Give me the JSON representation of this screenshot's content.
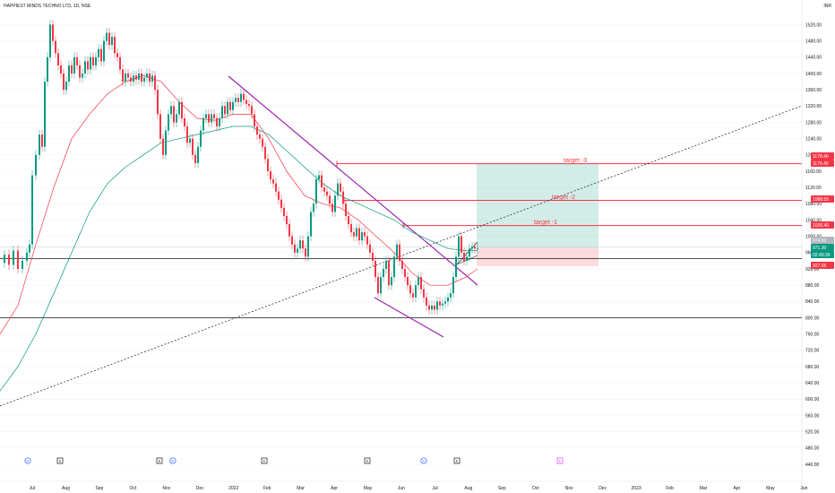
{
  "header": {
    "title": "HAPPIEST MINDS TECHNO LTD, 1D, NSE",
    "currency": "INR"
  },
  "chart_data": {
    "type": "candlestick",
    "title": "HAPPIEST MINDS TECHNO LTD, 1D, NSE",
    "y_axis": {
      "min": 430,
      "max": 1600,
      "ticks": [
        1520,
        1480,
        1440,
        1400,
        1360,
        1320,
        1280,
        1240,
        1200,
        1160,
        1120,
        1080,
        1040,
        1000,
        960,
        920,
        880,
        840,
        800,
        760,
        720,
        680,
        640,
        600,
        560,
        520,
        480,
        440
      ],
      "labels": [
        "1520.00",
        "1480.00",
        "1440.00",
        "1400.00",
        "1360.00",
        "1320.00",
        "1280.00",
        "1240.00",
        "1200.00",
        "1160.00",
        "1120.00",
        "1080.00",
        "1040.00",
        "1000.00",
        "960.00",
        "920.00",
        "880.00",
        "840.00",
        "800.00",
        "760.00",
        "720.00",
        "680.00",
        "640.00",
        "600.00",
        "560.00",
        "520.00",
        "480.00",
        "440.00"
      ]
    },
    "x_axis": {
      "labels": [
        "Jul",
        "Aug",
        "Sep",
        "Oct",
        "Nov",
        "Dec",
        "2022",
        "Feb",
        "Mar",
        "Apr",
        "May",
        "Jun",
        "Jul",
        "Aug",
        "Sep",
        "Oct",
        "Nov",
        "Dec",
        "2023",
        "Feb",
        "Mar",
        "Apr",
        "May",
        "Jun",
        "Ju"
      ]
    },
    "price_tags": [
      {
        "label": "1178.40",
        "value": 1178.4,
        "color": "#f23645"
      },
      {
        "label": "1176.40",
        "value": 1176.4,
        "color": "#f23645"
      },
      {
        "label": "1088.55",
        "value": 1088.55,
        "color": "#f23645"
      },
      {
        "label": "1026.40",
        "value": 1026.4,
        "color": "#f23645"
      },
      {
        "label": "974.50",
        "value": 974.5,
        "color": "#b2b5be"
      },
      {
        "label": "971.30",
        "value": 971.3,
        "color": "#089981"
      },
      {
        "label": "02:49:39",
        "value": 953,
        "color": "#089981"
      },
      {
        "label": "927.05",
        "value": 927.05,
        "color": "#f23645"
      }
    ],
    "levels": {
      "target3": 1178.4,
      "target2": 1088.55,
      "target1": 1026.4,
      "entry": 971.3,
      "stop": 927.05,
      "support_top": 945,
      "support_bottom": 800
    },
    "target_labels": [
      "target -3",
      "target -2",
      "target -1"
    ],
    "events": [
      "D",
      "E",
      "E",
      "D",
      "E",
      "E",
      "D",
      "E",
      "E"
    ],
    "close_series": [
      [
        0,
        935
      ],
      [
        5,
        955
      ],
      [
        10,
        930
      ],
      [
        15,
        965
      ],
      [
        20,
        920
      ],
      [
        25,
        940
      ],
      [
        30,
        960
      ],
      [
        33,
        980
      ],
      [
        36,
        1150
      ],
      [
        40,
        1200
      ],
      [
        44,
        1250
      ],
      [
        47,
        1220
      ],
      [
        50,
        1380
      ],
      [
        53,
        1440
      ],
      [
        56,
        1520
      ],
      [
        59,
        1480
      ],
      [
        62,
        1450
      ],
      [
        65,
        1420
      ],
      [
        68,
        1400
      ],
      [
        71,
        1360
      ],
      [
        74,
        1380
      ],
      [
        77,
        1420
      ],
      [
        80,
        1400
      ],
      [
        83,
        1440
      ],
      [
        86,
        1420
      ],
      [
        89,
        1390
      ],
      [
        92,
        1400
      ],
      [
        95,
        1430
      ],
      [
        98,
        1410
      ],
      [
        101,
        1440
      ],
      [
        104,
        1420
      ],
      [
        107,
        1440
      ],
      [
        110,
        1460
      ],
      [
        113,
        1430
      ],
      [
        116,
        1480
      ],
      [
        119,
        1500
      ],
      [
        122,
        1470
      ],
      [
        125,
        1490
      ],
      [
        128,
        1450
      ],
      [
        131,
        1440
      ],
      [
        134,
        1410
      ],
      [
        137,
        1380
      ],
      [
        140,
        1400
      ],
      [
        143,
        1390
      ],
      [
        146,
        1380
      ],
      [
        149,
        1395
      ],
      [
        152,
        1385
      ],
      [
        155,
        1400
      ],
      [
        158,
        1380
      ],
      [
        161,
        1390
      ],
      [
        164,
        1400
      ],
      [
        167,
        1380
      ],
      [
        170,
        1395
      ],
      [
        173,
        1360
      ],
      [
        176,
        1300
      ],
      [
        179,
        1240
      ],
      [
        182,
        1200
      ],
      [
        185,
        1260
      ],
      [
        188,
        1300
      ],
      [
        191,
        1320
      ],
      [
        194,
        1280
      ],
      [
        197,
        1300
      ],
      [
        200,
        1330
      ],
      [
        203,
        1290
      ],
      [
        206,
        1270
      ],
      [
        209,
        1230
      ],
      [
        212,
        1240
      ],
      [
        215,
        1200
      ],
      [
        218,
        1180
      ],
      [
        221,
        1220
      ],
      [
        224,
        1260
      ],
      [
        227,
        1290
      ],
      [
        230,
        1300
      ],
      [
        233,
        1280
      ],
      [
        236,
        1300
      ],
      [
        239,
        1290
      ],
      [
        242,
        1270
      ],
      [
        245,
        1290
      ],
      [
        248,
        1320
      ],
      [
        251,
        1300
      ],
      [
        254,
        1330
      ],
      [
        257,
        1310
      ],
      [
        260,
        1330
      ],
      [
        263,
        1340
      ],
      [
        266,
        1330
      ],
      [
        269,
        1350
      ],
      [
        272,
        1335
      ],
      [
        275,
        1325
      ],
      [
        278,
        1320
      ],
      [
        281,
        1300
      ],
      [
        284,
        1270
      ],
      [
        287,
        1250
      ],
      [
        290,
        1240
      ],
      [
        293,
        1220
      ],
      [
        296,
        1190
      ],
      [
        299,
        1160
      ],
      [
        302,
        1140
      ],
      [
        305,
        1130
      ],
      [
        308,
        1110
      ],
      [
        311,
        1090
      ],
      [
        314,
        1070
      ],
      [
        317,
        1050
      ],
      [
        320,
        1030
      ],
      [
        323,
        1000
      ],
      [
        326,
        980
      ],
      [
        329,
        960
      ],
      [
        332,
        970
      ],
      [
        335,
        990
      ],
      [
        338,
        970
      ],
      [
        341,
        950
      ],
      [
        344,
        1000
      ],
      [
        347,
        1060
      ],
      [
        350,
        1080
      ],
      [
        353,
        1140
      ],
      [
        356,
        1150
      ],
      [
        359,
        1120
      ],
      [
        362,
        1110
      ],
      [
        365,
        1100
      ],
      [
        368,
        1080
      ],
      [
        371,
        1060
      ],
      [
        374,
        1100
      ],
      [
        377,
        1130
      ],
      [
        380,
        1110
      ],
      [
        383,
        1080
      ],
      [
        386,
        1050
      ],
      [
        389,
        1030
      ],
      [
        392,
        1010
      ],
      [
        395,
        1000
      ],
      [
        398,
        1020
      ],
      [
        401,
        990
      ],
      [
        404,
        1010
      ],
      [
        407,
        1000
      ],
      [
        410,
        980
      ],
      [
        413,
        960
      ],
      [
        416,
        940
      ],
      [
        419,
        900
      ],
      [
        422,
        860
      ],
      [
        425,
        900
      ],
      [
        428,
        920
      ],
      [
        431,
        940
      ],
      [
        434,
        880
      ],
      [
        437,
        900
      ],
      [
        440,
        950
      ],
      [
        443,
        980
      ],
      [
        446,
        940
      ],
      [
        449,
        920
      ],
      [
        452,
        900
      ],
      [
        455,
        880
      ],
      [
        458,
        860
      ],
      [
        461,
        850
      ],
      [
        464,
        880
      ],
      [
        467,
        900
      ],
      [
        470,
        870
      ],
      [
        473,
        850
      ],
      [
        476,
        830
      ],
      [
        479,
        820
      ],
      [
        482,
        830
      ],
      [
        485,
        820
      ],
      [
        488,
        840
      ],
      [
        491,
        830
      ],
      [
        494,
        835
      ],
      [
        497,
        840
      ],
      [
        500,
        850
      ],
      [
        503,
        860
      ],
      [
        506,
        900
      ],
      [
        509,
        950
      ],
      [
        512,
        1000
      ],
      [
        515,
        960
      ],
      [
        518,
        940
      ],
      [
        521,
        950
      ],
      [
        524,
        970
      ],
      [
        527,
        975
      ],
      [
        530,
        970
      ],
      [
        533,
        971
      ]
    ],
    "ema_red": [
      [
        0,
        760
      ],
      [
        20,
        830
      ],
      [
        40,
        980
      ],
      [
        60,
        1120
      ],
      [
        80,
        1240
      ],
      [
        100,
        1300
      ],
      [
        120,
        1350
      ],
      [
        140,
        1380
      ],
      [
        160,
        1395
      ],
      [
        180,
        1380
      ],
      [
        200,
        1330
      ],
      [
        220,
        1290
      ],
      [
        240,
        1285
      ],
      [
        260,
        1300
      ],
      [
        280,
        1300
      ],
      [
        300,
        1240
      ],
      [
        320,
        1160
      ],
      [
        340,
        1100
      ],
      [
        360,
        1080
      ],
      [
        380,
        1070
      ],
      [
        400,
        1040
      ],
      [
        420,
        1000
      ],
      [
        440,
        960
      ],
      [
        460,
        910
      ],
      [
        480,
        880
      ],
      [
        500,
        880
      ],
      [
        520,
        900
      ],
      [
        533,
        920
      ]
    ],
    "ema_green": [
      [
        0,
        620
      ],
      [
        20,
        680
      ],
      [
        40,
        760
      ],
      [
        60,
        860
      ],
      [
        80,
        960
      ],
      [
        100,
        1060
      ],
      [
        120,
        1130
      ],
      [
        140,
        1170
      ],
      [
        160,
        1200
      ],
      [
        180,
        1230
      ],
      [
        200,
        1240
      ],
      [
        220,
        1250
      ],
      [
        240,
        1260
      ],
      [
        260,
        1270
      ],
      [
        280,
        1270
      ],
      [
        300,
        1250
      ],
      [
        320,
        1210
      ],
      [
        340,
        1170
      ],
      [
        360,
        1130
      ],
      [
        380,
        1100
      ],
      [
        400,
        1080
      ],
      [
        420,
        1060
      ],
      [
        440,
        1040
      ],
      [
        460,
        1010
      ],
      [
        480,
        990
      ],
      [
        500,
        970
      ],
      [
        520,
        965
      ],
      [
        533,
        965
      ]
    ]
  }
}
